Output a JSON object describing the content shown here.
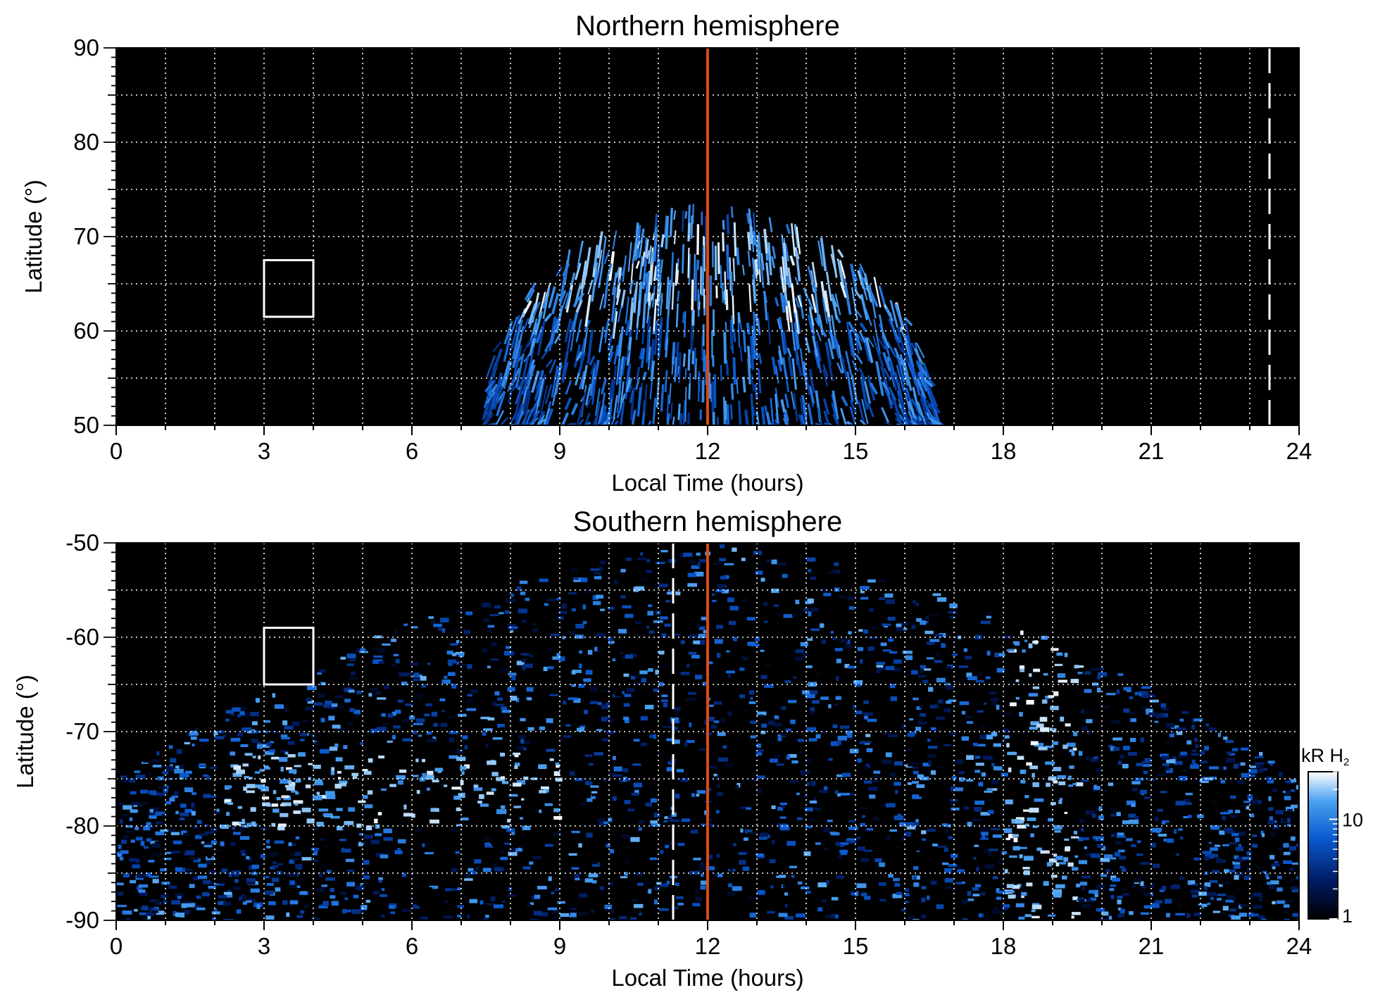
{
  "chart_data": [
    {
      "type": "heatmap",
      "title": "Northern hemisphere",
      "xlabel": "Local Time (hours)",
      "ylabel": "Latitude (°)",
      "xlim": [
        0,
        24
      ],
      "ylim": [
        50,
        90
      ],
      "xticks": [
        "0",
        "3",
        "6",
        "9",
        "12",
        "15",
        "18",
        "21",
        "24"
      ],
      "yticks": [
        "50",
        "60",
        "70",
        "80",
        "90"
      ],
      "grid": true,
      "background": "#000000",
      "emission_region": {
        "lt_start": 7.6,
        "lt_end": 16.6,
        "lat_max_at_noon": 73.5,
        "bright_band_lat": [
          62,
          72
        ]
      },
      "reference_line_lt": 12,
      "reference_line_color": "#d84a1b",
      "dashed_marker_lt": 23.4,
      "box": {
        "lt": [
          3,
          4
        ],
        "lat": [
          61.5,
          67.5
        ]
      }
    },
    {
      "type": "heatmap",
      "title": "Southern hemisphere",
      "xlabel": "Local Time (hours)",
      "ylabel": "Latitude (°)",
      "xlim": [
        0,
        24
      ],
      "ylim": [
        -90,
        -50
      ],
      "xticks": [
        "0",
        "3",
        "6",
        "9",
        "12",
        "15",
        "18",
        "21",
        "24"
      ],
      "yticks": [
        "-90",
        "-80",
        "-70",
        "-60",
        "-50"
      ],
      "grid": true,
      "background": "#000000",
      "emission_region": {
        "lt_start": 0,
        "lt_end": 24,
        "coverage_lat_dawn_dusk": -74.5,
        "coverage_lat_noon": -50,
        "bright_arc_dawn_lt": [
          2,
          9
        ],
        "bright_arc_dusk_lt": [
          18,
          19.5
        ]
      },
      "reference_line_lt": 12,
      "reference_line_color": "#d84a1b",
      "dashed_marker_lt": 11.3,
      "box": {
        "lt": [
          3,
          4
        ],
        "lat": [
          -65,
          -59
        ]
      },
      "colorbar": {
        "label": "kR H",
        "label_subscript": "2",
        "scale": "log",
        "range": [
          1,
          30
        ],
        "ticks": [
          "1",
          "10"
        ],
        "colors": [
          "#000000",
          "#001a60",
          "#0a5ad0",
          "#4aa0f0",
          "#ffffff"
        ]
      }
    }
  ]
}
